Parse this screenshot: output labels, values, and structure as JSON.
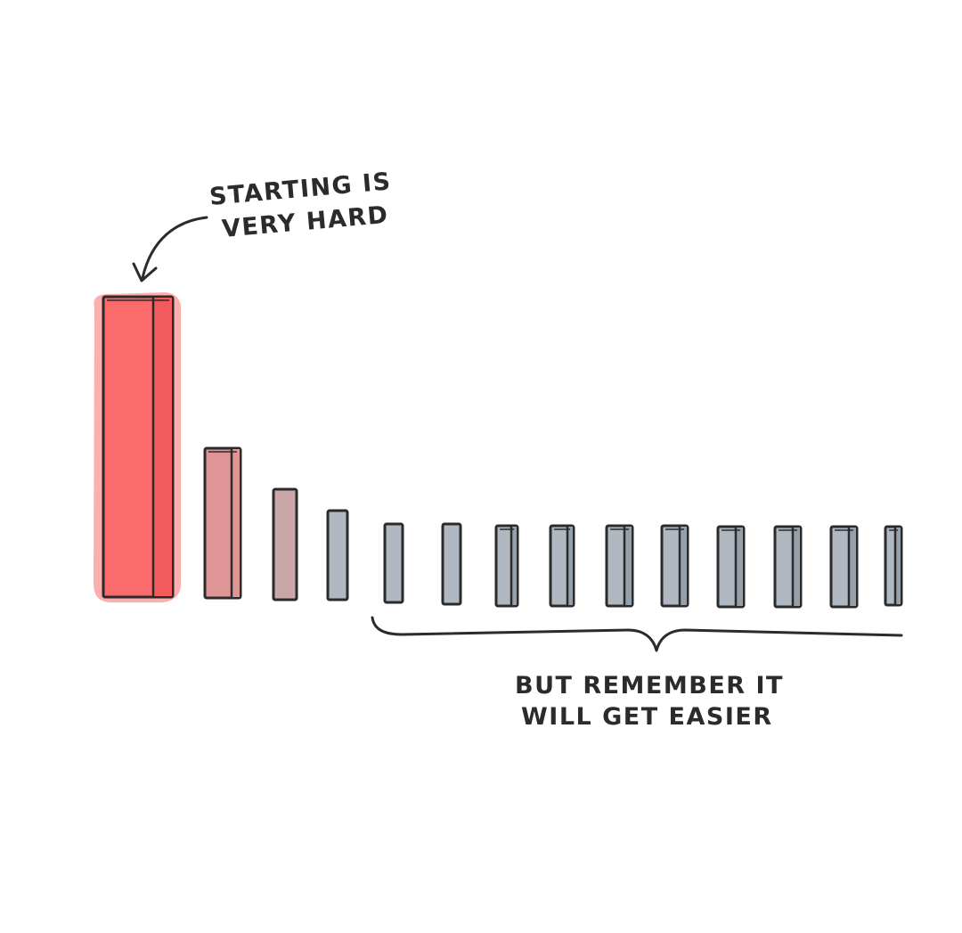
{
  "annotations": {
    "top_line1": "STARTING IS",
    "top_line2": "VERY HARD",
    "bottom_line1": "BUT REMEMBER IT",
    "bottom_line2": "WILL GET EASIER"
  },
  "colors": {
    "background": "#ffffff",
    "outline": "#2b2b2b",
    "first_domino_front": "#fb6b6b",
    "first_domino_side": "#f25b5b",
    "second_domino_front": "#df9595",
    "third_domino_front": "#c9a6a8",
    "rest_domino_front": "#b0b9c1",
    "rest_domino_side": "#96a0aa"
  },
  "icons": {
    "arrow": "curved-arrow-icon",
    "brace": "curly-brace-icon"
  }
}
